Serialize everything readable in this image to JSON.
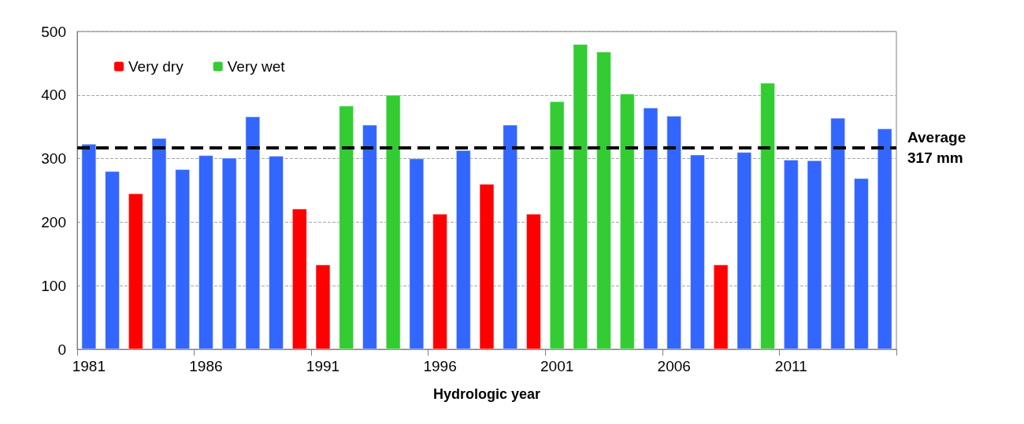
{
  "chart_data": {
    "type": "bar",
    "xlabel": "Hydrologic year",
    "categories": [
      "1981",
      null,
      null,
      null,
      null,
      "1986",
      null,
      null,
      null,
      null,
      "1991",
      null,
      null,
      null,
      null,
      "1996",
      null,
      null,
      null,
      null,
      "2001",
      null,
      null,
      null,
      null,
      "2006",
      null,
      null,
      null,
      null,
      "2011",
      null,
      null,
      null,
      null
    ],
    "stacked": true,
    "series": [
      {
        "color": "#3366ff",
        "values": [
          323,
          280,
          null,
          332,
          283,
          305,
          301,
          366,
          304,
          null,
          null,
          null,
          353,
          null,
          300,
          null,
          313,
          null,
          353,
          null,
          null,
          null,
          null,
          null,
          380,
          367,
          306,
          null,
          310,
          null,
          298,
          297,
          364,
          269,
          347
        ]
      },
      {
        "name": "Very dry",
        "color": "#ff0000",
        "values": [
          null,
          null,
          245,
          null,
          null,
          null,
          null,
          null,
          null,
          221,
          133,
          null,
          null,
          null,
          null,
          213,
          null,
          260,
          null,
          213,
          null,
          null,
          null,
          null,
          null,
          null,
          null,
          133,
          null,
          null,
          null,
          null,
          null,
          null,
          null
        ]
      },
      {
        "name": "Very wet",
        "color": "#33cc33",
        "values": [
          null,
          null,
          null,
          null,
          null,
          null,
          null,
          null,
          null,
          null,
          null,
          383,
          null,
          400,
          null,
          null,
          null,
          null,
          null,
          null,
          390,
          480,
          468,
          402,
          null,
          null,
          null,
          null,
          null,
          419,
          null,
          null,
          null,
          null,
          null
        ]
      }
    ],
    "ylim": [
      0,
      500
    ],
    "yticks": [
      0,
      100,
      200,
      300,
      400,
      500
    ],
    "grid": "y",
    "legend": "top left",
    "ref_lines": [
      {
        "axis": "y",
        "value": 317,
        "label": "Average\n317 mm",
        "color": "#000000",
        "line_style": "dashed"
      }
    ]
  }
}
